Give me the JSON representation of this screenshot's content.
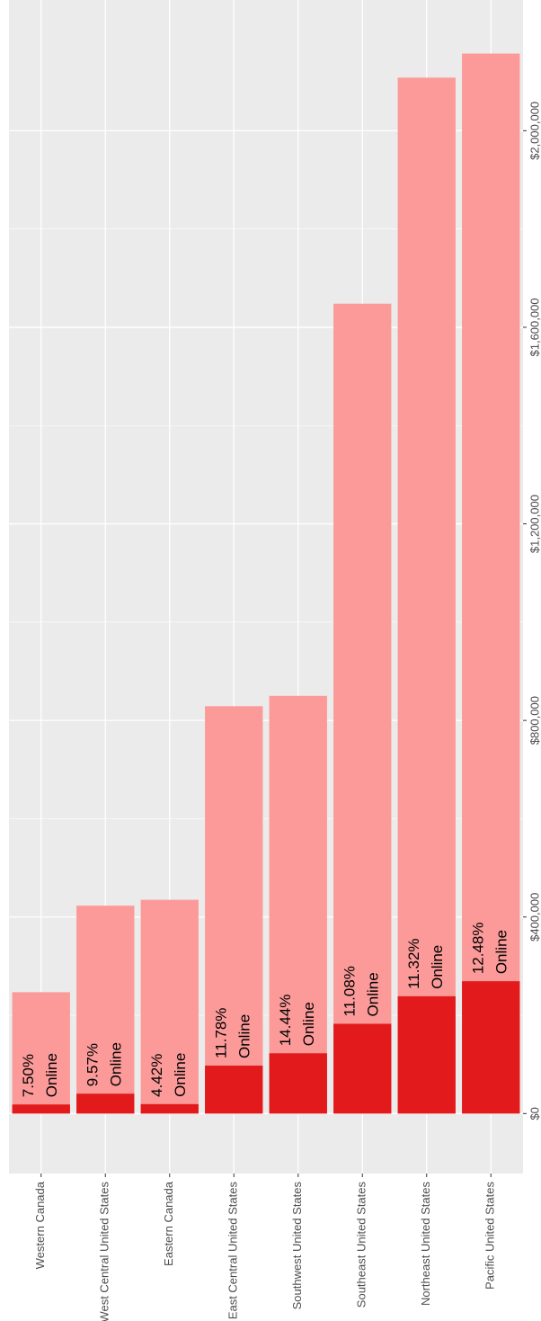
{
  "chart_data": {
    "type": "bar",
    "orientation": "horizontal, rotated 90 degrees clockwise",
    "categories": [
      "Western Canada",
      "West Central United States",
      "Eastern Canada",
      "East Central United States",
      "Southwest United States",
      "Southeast United States",
      "Northeast United States",
      "Pacific United States"
    ],
    "series": [
      {
        "name": "",
        "values": [
          247000,
          423000,
          435000,
          829000,
          850000,
          1648000,
          2108000,
          2157000
        ]
      },
      {
        "name": "",
        "values": [
          18500,
          40500,
          19200,
          97600,
          122700,
          182700,
          238700,
          269300
        ]
      }
    ],
    "bar_labels": [
      [
        "7.50%",
        "Online"
      ],
      [
        "9.57%",
        "Online"
      ],
      [
        "4.42%",
        "Online"
      ],
      [
        "11.78%",
        "Online"
      ],
      [
        "14.44%",
        "Online"
      ],
      [
        "11.08%",
        "Online"
      ],
      [
        "11.32%",
        "Online"
      ],
      [
        "12.48%",
        "Online"
      ]
    ],
    "value_axis_ticks": [
      "$0",
      "$400,000",
      "$800,000",
      "$1,200,000",
      "$1,600,000",
      "$2,000,000"
    ],
    "value_axis_range": [
      -122000,
      2266000
    ],
    "grid": true,
    "colors": {
      "total": "#fb9a99",
      "online": "#e31a1c",
      "panel": "#ebebeb",
      "grid": "#ffffff",
      "tick_text": "#4d4d4d"
    }
  }
}
